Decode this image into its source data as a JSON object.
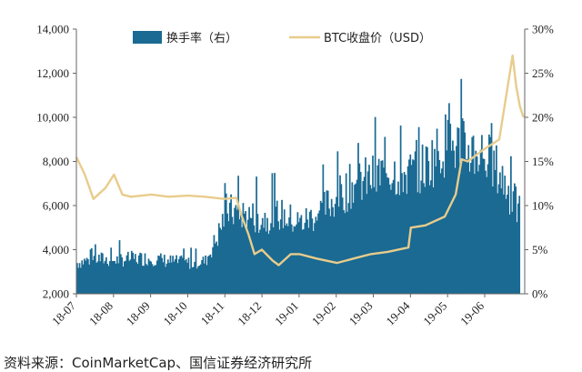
{
  "chart_data": {
    "type": "bar+line",
    "title": "",
    "categories": [
      "18-07",
      "18-08",
      "18-09",
      "18-10",
      "18-11",
      "18-12",
      "19-01",
      "19-02",
      "19-03",
      "19-04",
      "19-05",
      "19-06"
    ],
    "y_left": {
      "label": "",
      "range": [
        2000,
        14000
      ],
      "ticks": [
        "2,000",
        "4,000",
        "6,000",
        "8,000",
        "10,000",
        "12,000",
        "14,000"
      ]
    },
    "y_right": {
      "label": "",
      "range": [
        0,
        30
      ],
      "unit": "%",
      "ticks": [
        "0%",
        "5%",
        "10%",
        "15%",
        "20%",
        "25%",
        "30%"
      ]
    },
    "legend": {
      "placement": "top-center"
    },
    "series": [
      {
        "name": "换手率（右）",
        "kind": "bar",
        "axis": "right",
        "color": "#1a6a93",
        "x": [
          "2018-07-01",
          "2018-07-15",
          "2018-08-01",
          "2018-08-15",
          "2018-09-01",
          "2018-09-15",
          "2018-10-01",
          "2018-10-15",
          "2018-10-25",
          "2018-11-01",
          "2018-11-15",
          "2018-12-01",
          "2018-12-15",
          "2019-01-01",
          "2019-01-15",
          "2019-02-01",
          "2019-02-15",
          "2019-03-01",
          "2019-03-15",
          "2019-04-01",
          "2019-04-15",
          "2019-05-01",
          "2019-05-15",
          "2019-06-01",
          "2019-06-15",
          "2019-06-30"
        ],
        "values": [
          3.5,
          4.0,
          3.8,
          4.0,
          4.0,
          3.7,
          3.5,
          3.7,
          6.5,
          9.5,
          9.0,
          8.5,
          9.0,
          8.0,
          9.0,
          11.0,
          12.5,
          13.0,
          14.0,
          13.5,
          14.5,
          17.0,
          16.5,
          16.0,
          13.5,
          9.5
        ]
      },
      {
        "name": "BTC收盘价（USD）",
        "kind": "line",
        "axis": "left",
        "color": "#e8cc8c",
        "x": [
          "2018-07-01",
          "2018-07-08",
          "2018-07-15",
          "2018-07-25",
          "2018-08-01",
          "2018-08-08",
          "2018-08-15",
          "2018-09-01",
          "2018-09-15",
          "2018-10-01",
          "2018-10-15",
          "2018-10-31",
          "2018-11-10",
          "2018-11-14",
          "2018-11-20",
          "2018-11-25",
          "2018-12-01",
          "2018-12-10",
          "2018-12-15",
          "2018-12-25",
          "2019-01-01",
          "2019-01-15",
          "2019-02-01",
          "2019-02-15",
          "2019-03-01",
          "2019-03-15",
          "2019-04-01",
          "2019-04-03",
          "2019-04-15",
          "2019-05-01",
          "2019-05-10",
          "2019-05-15",
          "2019-05-20",
          "2019-06-01",
          "2019-06-15",
          "2019-06-26",
          "2019-06-29",
          "2019-07-02",
          "2019-07-05"
        ],
        "values": [
          8200,
          7400,
          6300,
          6800,
          7400,
          6500,
          6400,
          6500,
          6400,
          6450,
          6400,
          6300,
          6350,
          5600,
          4700,
          3800,
          4000,
          3500,
          3300,
          3800,
          3800,
          3600,
          3400,
          3600,
          3800,
          3900,
          4100,
          5000,
          5100,
          5500,
          6500,
          8100,
          8000,
          8500,
          9000,
          12800,
          11400,
          10500,
          10000
        ]
      }
    ]
  },
  "caption": "资料来源：CoinMarketCap、国信证券经济研究所"
}
